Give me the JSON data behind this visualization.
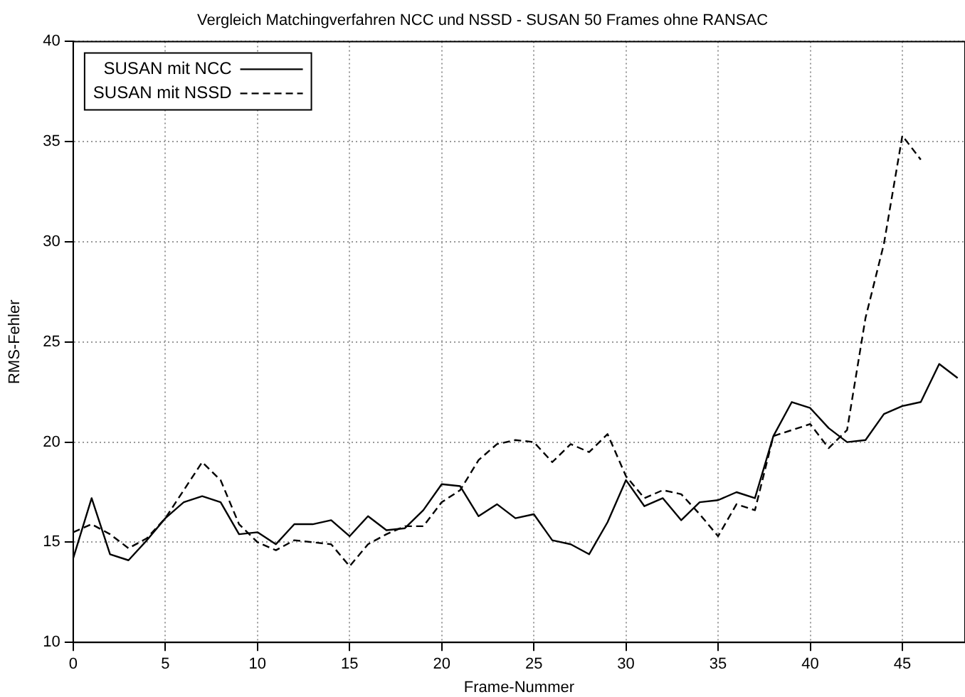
{
  "chart_data": {
    "type": "line",
    "title": "Vergleich Matchingverfahren NCC und NSSD - SUSAN 50 Frames ohne RANSAC",
    "xlabel": "Frame-Nummer",
    "ylabel": "RMS-Fehler",
    "x": [
      0,
      1,
      2,
      3,
      4,
      5,
      6,
      7,
      8,
      9,
      10,
      11,
      12,
      13,
      14,
      15,
      16,
      17,
      18,
      19,
      20,
      21,
      22,
      23,
      24,
      25,
      26,
      27,
      28,
      29,
      30,
      31,
      32,
      33,
      34,
      35,
      36,
      37,
      38,
      39,
      40,
      41,
      42,
      43,
      44,
      45,
      46,
      47,
      48
    ],
    "series": [
      {
        "name": "SUSAN mit NCC",
        "color": "#000000",
        "line_style": "solid",
        "values": [
          14.2,
          17.2,
          14.4,
          14.1,
          15.1,
          16.2,
          17.0,
          17.3,
          17.0,
          15.4,
          15.5,
          14.9,
          15.9,
          15.9,
          16.1,
          15.3,
          16.3,
          15.6,
          15.7,
          16.6,
          17.9,
          17.8,
          16.3,
          16.9,
          16.2,
          16.4,
          15.1,
          14.9,
          14.4,
          16.0,
          18.1,
          16.8,
          17.2,
          16.1,
          17.0,
          17.1,
          17.5,
          17.2,
          20.3,
          22.0,
          21.7,
          20.7,
          20.0,
          20.1,
          21.4,
          21.8,
          22.0,
          23.9,
          23.2
        ]
      },
      {
        "name": "SUSAN mit NSSD",
        "color": "#000000",
        "line_style": "dashed",
        "values": [
          15.5,
          15.9,
          15.4,
          14.7,
          15.2,
          16.2,
          17.6,
          19.0,
          18.1,
          15.9,
          15.0,
          14.6,
          15.1,
          15.0,
          14.9,
          13.8,
          14.9,
          15.4,
          15.8,
          15.8,
          17.0,
          17.6,
          19.1,
          19.9,
          20.1,
          20.0,
          19.0,
          19.9,
          19.5,
          20.4,
          18.3,
          17.2,
          17.6,
          17.4,
          16.4,
          15.3,
          16.9,
          16.6,
          20.3,
          20.6,
          20.9,
          19.7,
          20.6,
          26.2,
          29.9,
          35.3,
          34.1,
          null,
          null
        ]
      }
    ],
    "xlim": [
      0,
      48.4
    ],
    "xticks": [
      0,
      5,
      10,
      15,
      20,
      25,
      30,
      35,
      40,
      45
    ],
    "ylim": [
      10,
      40
    ],
    "yticks": [
      10,
      15,
      20,
      25,
      30,
      35,
      40
    ],
    "grid": true,
    "legend": "top left",
    "marker": "none"
  }
}
